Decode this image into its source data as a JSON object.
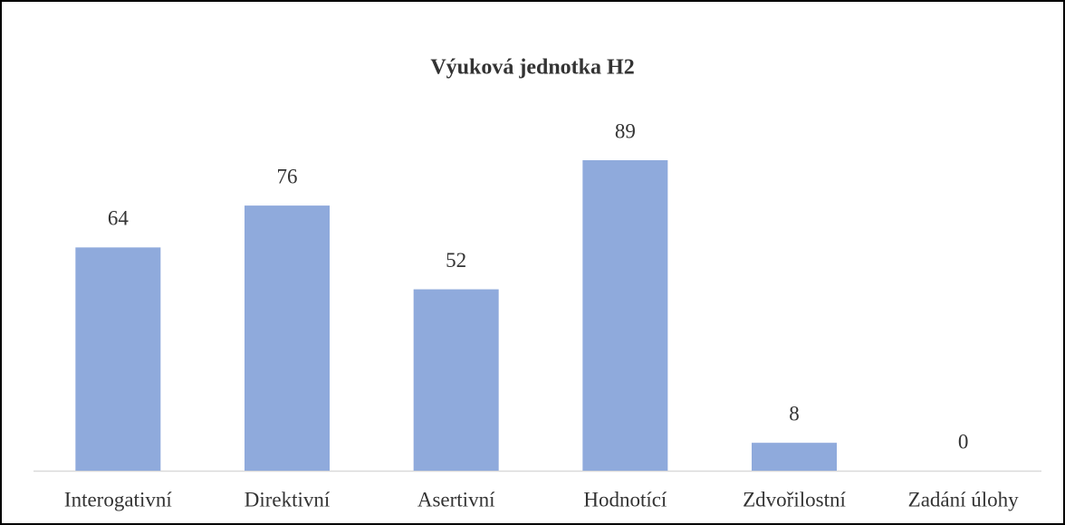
{
  "chart_data": {
    "type": "bar",
    "title": "Výuková jednotka H2",
    "categories": [
      "Interogativní",
      "Direktivní",
      "Asertivní",
      "Hodnotící",
      "Zdvořilostní",
      "Zadání úlohy"
    ],
    "values": [
      64,
      76,
      52,
      89,
      8,
      0
    ],
    "color": "#8faadc"
  }
}
